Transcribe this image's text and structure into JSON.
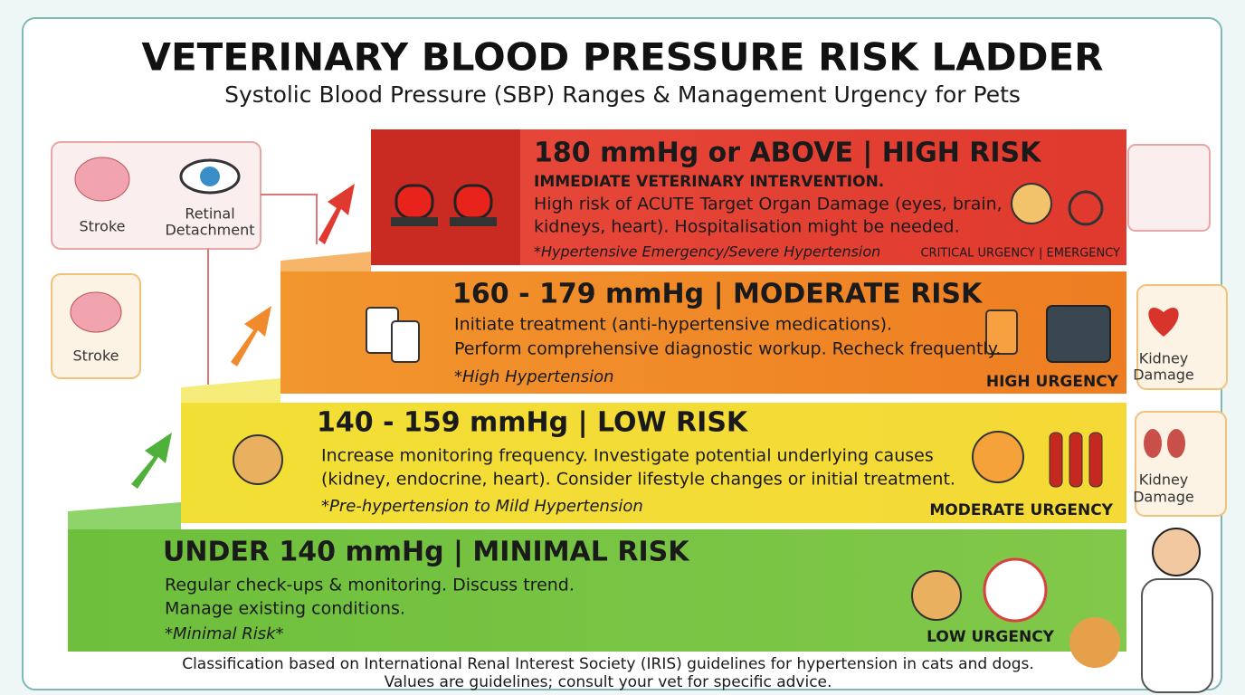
{
  "header": {
    "title": "VETERINARY BLOOD PRESSURE RISK LADDER",
    "subtitle": "Systolic Blood Pressure (SBP) Ranges & Management Urgency for Pets"
  },
  "tiers": [
    {
      "heading": "180 mmHg or ABOVE | HIGH RISK",
      "lines": [
        "IMMEDIATE VETERINARY INTERVENTION.",
        "High risk of ACUTE Target Organ Damage (eyes, brain,",
        "kidneys, heart). Hospitalisation might be needed."
      ],
      "note": "*Hypertensive Emergency/Severe Hypertension",
      "urgency": "CRITICAL URGENCY | EMERGENCY"
    },
    {
      "heading": "160 - 179 mmHg | MODERATE RISK",
      "lines": [
        "Initiate treatment (anti-hypertensive medications).",
        "Perform comprehensive diagnostic workup. Recheck frequently."
      ],
      "note": "*High Hypertension",
      "urgency": "HIGH URGENCY"
    },
    {
      "heading": "140 - 159 mmHg | LOW RISK",
      "lines": [
        "Increase monitoring frequency. Investigate potential underlying causes",
        "(kidney, endocrine, heart). Consider lifestyle changes or initial treatment."
      ],
      "note": "*Pre-hypertension to Mild Hypertension",
      "urgency": "MODERATE URGENCY"
    },
    {
      "heading": "UNDER 140 mmHg  | MINIMAL RISK",
      "lines": [
        "Regular check-ups & monitoring. Discuss trend.",
        "Manage existing conditions."
      ],
      "note": "*Minimal Risk*",
      "urgency": "LOW URGENCY"
    }
  ],
  "side_panels": [
    {
      "items": [
        {
          "lines": [
            "Stroke"
          ]
        },
        {
          "lines": [
            "Retinal",
            "Detachment"
          ]
        }
      ]
    },
    {
      "items": [
        {
          "lines": [
            "Stroke"
          ]
        }
      ]
    },
    {
      "items": [
        {
          "lines": [
            "Kidney",
            "Damage"
          ]
        }
      ]
    },
    {
      "items": [
        {
          "lines": [
            "Kidney",
            "Damage"
          ]
        }
      ]
    }
  ],
  "footer": [
    "Classification based on International Renal Interest Society (IRIS) guidelines for hypertension in cats and dogs.",
    "Values are guidelines; consult your vet for specific advice."
  ]
}
